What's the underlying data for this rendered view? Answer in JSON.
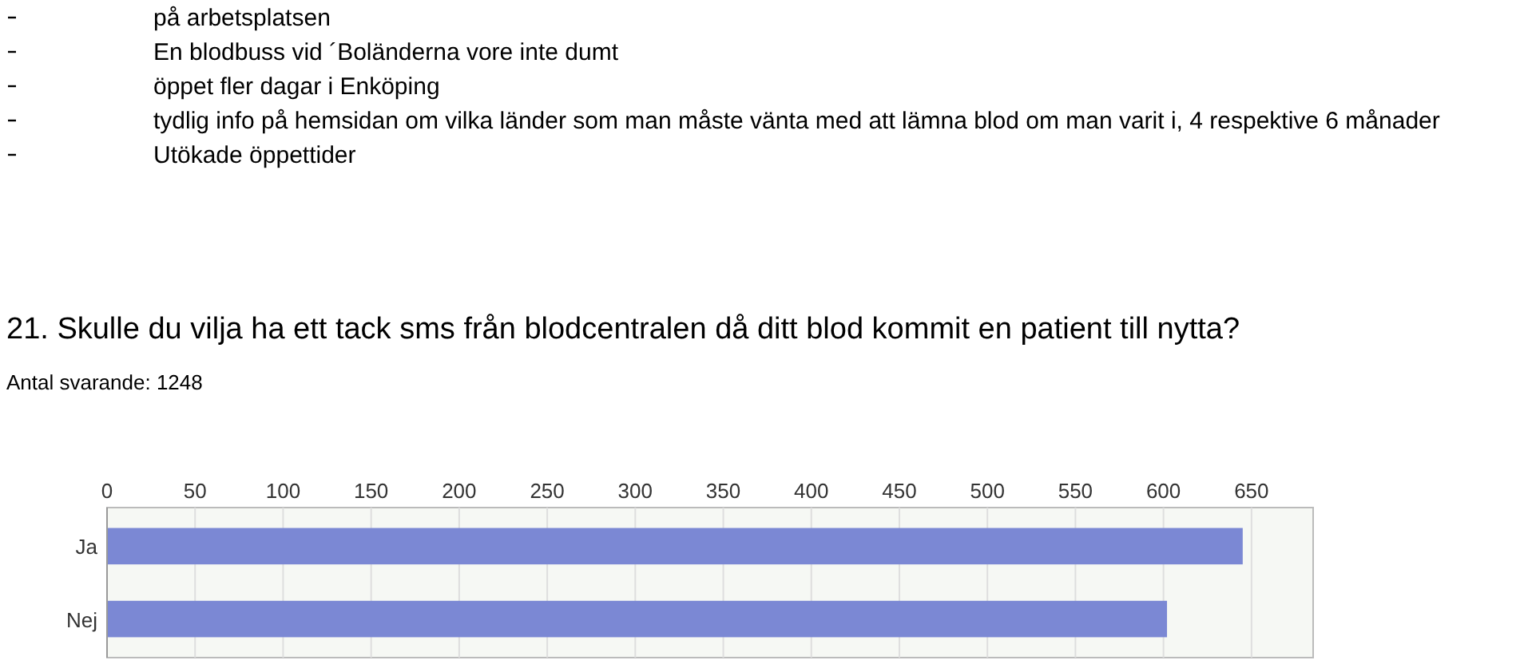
{
  "chart_data": {
    "type": "bar",
    "orientation": "horizontal",
    "title": "21. Skulle du vilja ha ett tack sms från blodcentralen då ditt blod kommit en patient till nytta?",
    "subtitle": "Antal svarande: 1248",
    "annotations": [
      "på arbetsplatsen",
      "En blodbuss vid ´Boländerna vore inte dumt",
      "öppet fler dagar i Enköping",
      "tydlig info på hemsidan om vilka länder som man måste vänta med att lämna blod om man varit i, 4 respektive 6 månader",
      "Utökade öppettider"
    ],
    "categories": [
      "Ja",
      "Nej"
    ],
    "values": [
      645,
      602
    ],
    "color": "#7b88d4",
    "xlim": [
      0,
      685
    ],
    "xticks": [
      0,
      50,
      100,
      150,
      200,
      250,
      300,
      350,
      400,
      450,
      500,
      550,
      600,
      650
    ],
    "grid": "x"
  }
}
